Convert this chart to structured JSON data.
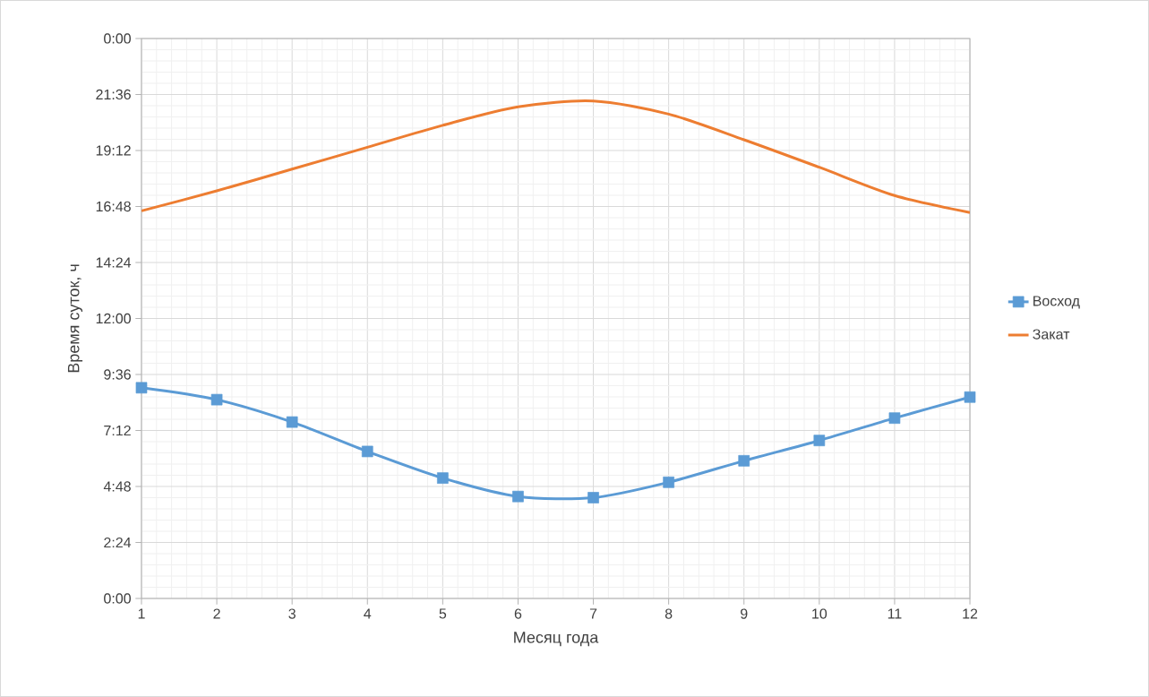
{
  "chart_data": {
    "type": "line",
    "xlabel": "Месяц года",
    "ylabel": "Время суток, ч",
    "x": [
      1,
      2,
      3,
      4,
      5,
      6,
      7,
      8,
      9,
      10,
      11,
      12
    ],
    "series": [
      {
        "name": "Восход",
        "color": "#5b9bd5",
        "marker": "square",
        "values": [
          9.03,
          8.52,
          7.56,
          6.3,
          5.16,
          4.37,
          4.32,
          4.98,
          5.9,
          6.77,
          7.73,
          8.63
        ]
      },
      {
        "name": "Закат",
        "color": "#ed7d31",
        "marker": "none",
        "values": [
          16.61,
          17.47,
          18.4,
          19.34,
          20.28,
          21.07,
          21.32,
          20.76,
          19.66,
          18.48,
          17.27,
          16.54
        ]
      }
    ],
    "xlim": [
      1,
      12
    ],
    "xticks": [
      1,
      2,
      3,
      4,
      5,
      6,
      7,
      8,
      9,
      10,
      11,
      12
    ],
    "ylim": [
      0,
      24
    ],
    "yticks": [
      {
        "value": 0,
        "label": "0:00"
      },
      {
        "value": 2.4,
        "label": "2:24"
      },
      {
        "value": 4.8,
        "label": "4:48"
      },
      {
        "value": 7.2,
        "label": "7:12"
      },
      {
        "value": 9.6,
        "label": "9:36"
      },
      {
        "value": 12,
        "label": "12:00"
      },
      {
        "value": 14.4,
        "label": "14:24"
      },
      {
        "value": 16.8,
        "label": "16:48"
      },
      {
        "value": 19.2,
        "label": "19:12"
      },
      {
        "value": 21.6,
        "label": "21:36"
      },
      {
        "value": 24,
        "label": "0:00"
      }
    ],
    "grid": true,
    "legend": "right",
    "line_style": "solid"
  }
}
